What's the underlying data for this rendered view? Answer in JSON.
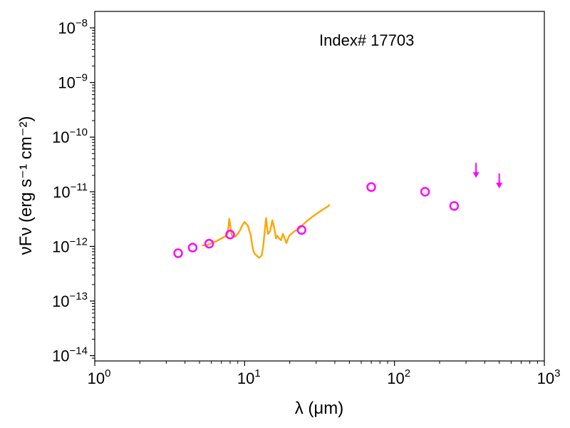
{
  "chart_data": {
    "type": "scatter",
    "title": "",
    "annotation": "Index# 17703",
    "xlabel": "λ (μm)",
    "ylabel": "νFν (erg s⁻¹ cm⁻²)",
    "xscale": "log",
    "yscale": "log",
    "xlim": [
      1,
      1000
    ],
    "ylim": [
      8e-15,
      2e-08
    ],
    "x_ticks": [
      {
        "value": 1,
        "mantissa": "10",
        "exp": "0"
      },
      {
        "value": 10,
        "mantissa": "10",
        "exp": "1"
      },
      {
        "value": 100,
        "mantissa": "10",
        "exp": "2"
      },
      {
        "value": 1000,
        "mantissa": "10",
        "exp": "3"
      }
    ],
    "y_ticks": [
      {
        "value": 1e-14,
        "mantissa": "10",
        "exp": "−14"
      },
      {
        "value": 1e-13,
        "mantissa": "10",
        "exp": "−13"
      },
      {
        "value": 1e-12,
        "mantissa": "10",
        "exp": "−12"
      },
      {
        "value": 1e-11,
        "mantissa": "10",
        "exp": "−11"
      },
      {
        "value": 1e-10,
        "mantissa": "10",
        "exp": "−10"
      },
      {
        "value": 1e-09,
        "mantissa": "10",
        "exp": "−9"
      },
      {
        "value": 1e-08,
        "mantissa": "10",
        "exp": "−8"
      }
    ],
    "grid": false,
    "legend": "none",
    "colors": {
      "spectrum": "#ffa500",
      "photometry": "#ff00ff"
    },
    "series": [
      {
        "kind": "line",
        "x": [
          5.2,
          5.6,
          6.0,
          6.5,
          7.0,
          7.5,
          7.7,
          7.9,
          8.2,
          8.6,
          9.0,
          9.3,
          9.7,
          10.0,
          10.5,
          11.0,
          11.3,
          11.6,
          12.0,
          12.5,
          13.0,
          13.3,
          13.6,
          13.9,
          14.3,
          14.8,
          15.3,
          15.8,
          16.2,
          16.5,
          17.0,
          17.5,
          18.0,
          18.5,
          19.0,
          19.5,
          20.0,
          20.8,
          21.5,
          22.5,
          23.5,
          24.5,
          26.0,
          28.0,
          30.0,
          32.0,
          34.0,
          36.0,
          37.0
        ],
        "y": [
          1.05e-12,
          1.05e-12,
          1.15e-12,
          1.25e-12,
          1.4e-12,
          1.55e-12,
          1.7e-12,
          3.2e-12,
          1.6e-12,
          1.5e-12,
          1.7e-12,
          1.95e-12,
          2.5e-12,
          2.8e-12,
          2.4e-12,
          1.6e-12,
          9.5e-13,
          7.5e-13,
          6.8e-13,
          6.2e-13,
          6.8e-13,
          1e-12,
          1.8e-12,
          3.3e-12,
          1.7e-12,
          1.9e-12,
          3e-12,
          2.1e-12,
          1.4e-12,
          1.55e-12,
          1.4e-12,
          1.3e-12,
          1.7e-12,
          1.4e-12,
          1.15e-12,
          1.4e-12,
          1.6e-12,
          1.75e-12,
          1.9e-12,
          2e-12,
          2.2e-12,
          2.5e-12,
          2.9e-12,
          3.4e-12,
          3.9e-12,
          4.4e-12,
          4.9e-12,
          5.4e-12,
          5.8e-12
        ]
      },
      {
        "kind": "points",
        "x": [
          3.6,
          4.5,
          5.8,
          8.0,
          24.0,
          70.0,
          160.0,
          250.0
        ],
        "y": [
          7.5e-13,
          9.5e-13,
          1.12e-12,
          1.65e-12,
          2e-12,
          1.22e-11,
          1e-11,
          5.5e-12
        ]
      },
      {
        "kind": "upper-limits",
        "x": [
          350.0,
          500.0
        ],
        "y": [
          2.5e-11,
          1.6e-11
        ]
      }
    ]
  }
}
